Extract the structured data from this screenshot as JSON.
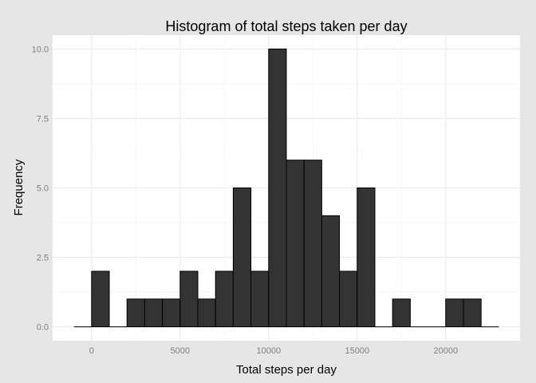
{
  "chart_data": {
    "type": "bar",
    "title": "Histogram of total steps taken per day",
    "xlabel": "Total steps per day",
    "ylabel": "Frequency",
    "bin_width": 1000,
    "bin_starts": [
      -1000,
      0,
      1000,
      2000,
      3000,
      4000,
      5000,
      6000,
      7000,
      8000,
      9000,
      10000,
      11000,
      12000,
      13000,
      14000,
      15000,
      16000,
      17000,
      18000,
      19000,
      20000,
      21000,
      22000
    ],
    "values": [
      0,
      2,
      0,
      1,
      1,
      1,
      2,
      1,
      2,
      5,
      2,
      10,
      6,
      6,
      4,
      2,
      5,
      0,
      1,
      0,
      0,
      1,
      1,
      0
    ],
    "xlim": [
      -2200,
      24200
    ],
    "ylim": [
      -0.5,
      10.5
    ],
    "xticks": [
      0,
      5000,
      10000,
      15000,
      20000
    ],
    "xtick_labels": [
      "0",
      "5000",
      "10000",
      "15000",
      "20000"
    ],
    "yticks": [
      0,
      2.5,
      5,
      7.5,
      10
    ],
    "ytick_labels": [
      "0.0",
      "2.5",
      "5.0",
      "7.5",
      "10.0"
    ],
    "grid": true,
    "legend": "none",
    "colors": {
      "background": "#e6e6e6",
      "panel": "#ffffff",
      "grid_major": "#ebebeb",
      "grid_minor": "#f5f5f5",
      "bar_fill": "#333333",
      "bar_outline": "#000000"
    }
  }
}
